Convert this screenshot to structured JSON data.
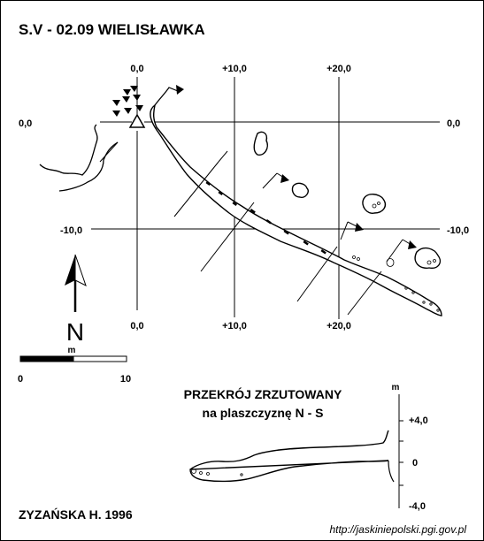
{
  "title": "S.V - 02.09  WIELISŁAWKA",
  "grid": {
    "x_top": [
      "0,0",
      "+10,0",
      "+20,0"
    ],
    "x_bottom": [
      "0,0",
      "+10,0",
      "+20,0"
    ],
    "y_left": [
      "0,0",
      "-10,0"
    ],
    "y_right": [
      "0,0",
      "-10,0"
    ]
  },
  "north_label": "N",
  "scale_bar": {
    "unit": "m",
    "start": "0",
    "end": "10"
  },
  "section": {
    "title": "PRZEKRÓJ ZRZUTOWANY",
    "subtitle": "na plaszczyznę N - S",
    "unit": "m",
    "ticks": [
      "+4,0",
      "0",
      "-4,0"
    ]
  },
  "author": "ZYZAŃSKA H. 1996",
  "url": "http://jaskiniepolski.pgi.gov.pl"
}
